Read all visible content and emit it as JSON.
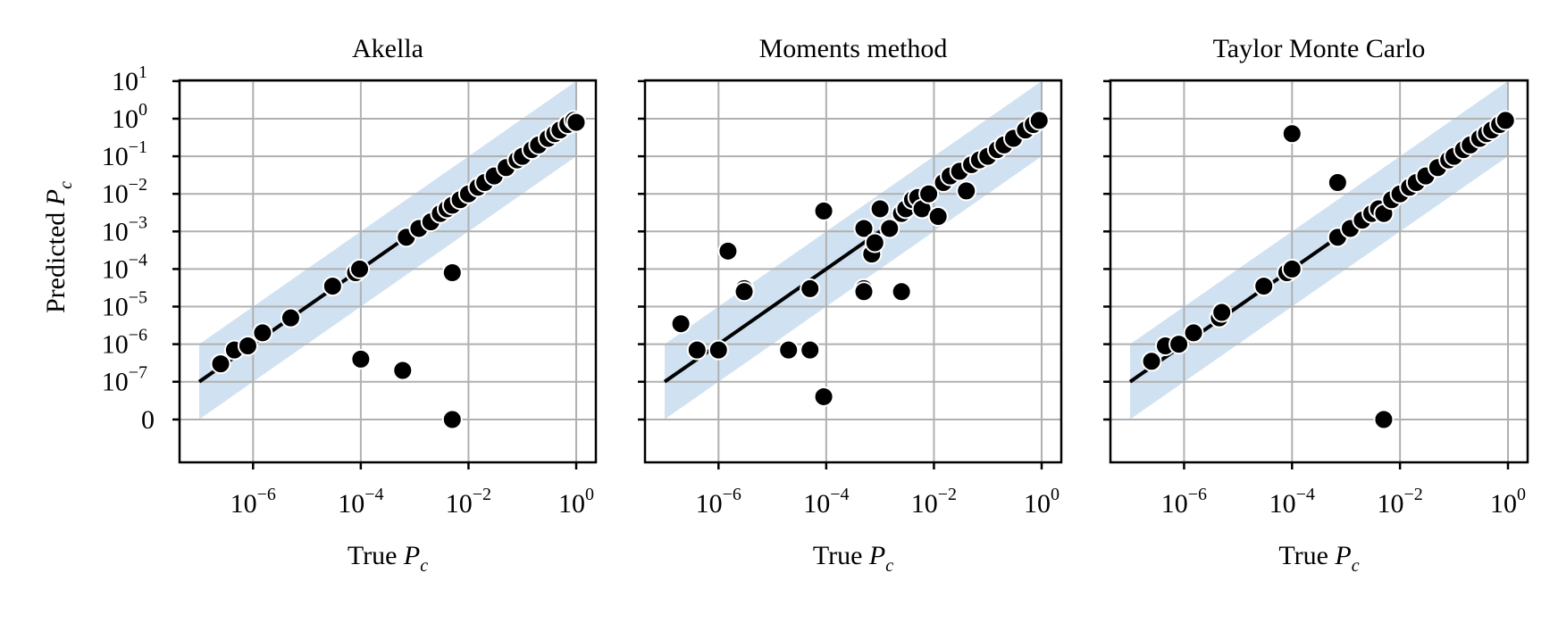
{
  "figure": {
    "ylabel_main": "Predicted ",
    "ylabel_var": "P",
    "ylabel_sub": "c",
    "xlabel_main": "True ",
    "xlabel_var": "P",
    "xlabel_sub": "c",
    "colors": {
      "band": "#a9cbe6",
      "points": "#000000",
      "line": "#000000",
      "grid": "#b0b0b0"
    }
  },
  "chart_data": [
    {
      "type": "scatter",
      "title": "Akella",
      "x_scale": "log",
      "y_scale": "symlog",
      "xlim": [
        1e-07,
        1
      ],
      "ylim": [
        1e-07,
        10
      ],
      "x_ticks": [
        {
          "base": "10",
          "exp": "−6",
          "value": 1e-06
        },
        {
          "base": "10",
          "exp": "−4",
          "value": 0.0001
        },
        {
          "base": "10",
          "exp": "−2",
          "value": 0.01
        },
        {
          "base": "10",
          "exp": "0",
          "value": 1
        }
      ],
      "y_ticks": [
        {
          "base": "10",
          "exp": "1",
          "value": 10
        },
        {
          "base": "10",
          "exp": "0",
          "value": 1
        },
        {
          "base": "10",
          "exp": "−1",
          "value": 0.1
        },
        {
          "base": "10",
          "exp": "−2",
          "value": 0.01
        },
        {
          "base": "10",
          "exp": "−3",
          "value": 0.001
        },
        {
          "base": "10",
          "exp": "−4",
          "value": 0.0001
        },
        {
          "base": "10",
          "exp": "−5",
          "value": 1e-05
        },
        {
          "base": "10",
          "exp": "−6",
          "value": 1e-06
        },
        {
          "base": "10",
          "exp": "−7",
          "value": 1e-07
        },
        {
          "base": "0",
          "exp": "",
          "value": 0
        }
      ],
      "reference_line": "y = x",
      "band": "factor of 10 above and below y = x",
      "grid": true,
      "points": [
        [
          2.5e-07,
          3e-07
        ],
        [
          4.5e-07,
          7e-07
        ],
        [
          8e-07,
          9e-07
        ],
        [
          1.5e-06,
          2e-06
        ],
        [
          5e-06,
          5e-06
        ],
        [
          3e-05,
          3.5e-05
        ],
        [
          8e-05,
          8e-05
        ],
        [
          9.5e-05,
          0.0001
        ],
        [
          0.0007,
          0.0007
        ],
        [
          0.0012,
          0.0012
        ],
        [
          0.002,
          0.0018
        ],
        [
          0.003,
          0.003
        ],
        [
          0.004,
          0.004
        ],
        [
          0.005,
          0.005
        ],
        [
          0.007,
          0.007
        ],
        [
          0.01,
          0.01
        ],
        [
          0.015,
          0.015
        ],
        [
          0.02,
          0.02
        ],
        [
          0.03,
          0.03
        ],
        [
          0.05,
          0.05
        ],
        [
          0.08,
          0.08
        ],
        [
          0.1,
          0.1
        ],
        [
          0.15,
          0.15
        ],
        [
          0.2,
          0.2
        ],
        [
          0.3,
          0.3
        ],
        [
          0.4,
          0.4
        ],
        [
          0.5,
          0.5
        ],
        [
          0.7,
          0.7
        ],
        [
          0.9,
          0.9
        ],
        [
          1.0,
          0.8
        ],
        [
          0.0001,
          4e-07
        ],
        [
          0.0006,
          2e-07
        ],
        [
          0.005,
          8e-05
        ],
        [
          0.005,
          0
        ]
      ]
    },
    {
      "type": "scatter",
      "title": "Moments method",
      "x_scale": "log",
      "y_scale": "symlog",
      "xlim": [
        1e-07,
        1
      ],
      "ylim": [
        1e-07,
        10
      ],
      "x_ticks": [
        {
          "base": "10",
          "exp": "−6",
          "value": 1e-06
        },
        {
          "base": "10",
          "exp": "−4",
          "value": 0.0001
        },
        {
          "base": "10",
          "exp": "−2",
          "value": 0.01
        },
        {
          "base": "10",
          "exp": "0",
          "value": 1
        }
      ],
      "y_ticks": [],
      "reference_line": "y = x",
      "band": "factor of 10 above and below y = x",
      "grid": true,
      "points": [
        [
          2e-07,
          3.5e-06
        ],
        [
          4e-07,
          7e-07
        ],
        [
          1e-06,
          7e-07
        ],
        [
          1.5e-06,
          0.0003
        ],
        [
          3e-06,
          3e-05
        ],
        [
          3e-06,
          2.5e-05
        ],
        [
          2e-05,
          7e-07
        ],
        [
          5e-05,
          7e-07
        ],
        [
          5e-05,
          3e-05
        ],
        [
          9e-05,
          0.0035
        ],
        [
          9e-05,
          4e-08
        ],
        [
          0.0005,
          0.0012
        ],
        [
          0.0005,
          3e-05
        ],
        [
          0.0005,
          2.5e-05
        ],
        [
          0.0007,
          0.00025
        ],
        [
          0.0008,
          0.0005
        ],
        [
          0.001,
          0.004
        ],
        [
          0.0015,
          0.0012
        ],
        [
          0.0025,
          2.5e-05
        ],
        [
          0.0025,
          0.003
        ],
        [
          0.003,
          0.004
        ],
        [
          0.004,
          0.007
        ],
        [
          0.005,
          0.008
        ],
        [
          0.006,
          0.004
        ],
        [
          0.008,
          0.01
        ],
        [
          0.012,
          0.0025
        ],
        [
          0.015,
          0.02
        ],
        [
          0.02,
          0.03
        ],
        [
          0.03,
          0.04
        ],
        [
          0.04,
          0.012
        ],
        [
          0.05,
          0.06
        ],
        [
          0.07,
          0.08
        ],
        [
          0.1,
          0.1
        ],
        [
          0.15,
          0.15
        ],
        [
          0.2,
          0.2
        ],
        [
          0.3,
          0.3
        ],
        [
          0.5,
          0.5
        ],
        [
          0.7,
          0.7
        ],
        [
          0.9,
          0.9
        ]
      ]
    },
    {
      "type": "scatter",
      "title": "Taylor Monte Carlo",
      "x_scale": "log",
      "y_scale": "symlog",
      "xlim": [
        1e-07,
        1
      ],
      "ylim": [
        1e-07,
        10
      ],
      "x_ticks": [
        {
          "base": "10",
          "exp": "−6",
          "value": 1e-06
        },
        {
          "base": "10",
          "exp": "−4",
          "value": 0.0001
        },
        {
          "base": "10",
          "exp": "−2",
          "value": 0.01
        },
        {
          "base": "10",
          "exp": "0",
          "value": 1
        }
      ],
      "y_ticks": [],
      "reference_line": "y = x",
      "band": "factor of 10 above and below y = x",
      "grid": true,
      "points": [
        [
          2.5e-07,
          3.5e-07
        ],
        [
          4.5e-07,
          9e-07
        ],
        [
          8e-07,
          1e-06
        ],
        [
          1.5e-06,
          2e-06
        ],
        [
          4.5e-06,
          5e-06
        ],
        [
          5e-06,
          7e-06
        ],
        [
          3e-05,
          3.5e-05
        ],
        [
          8e-05,
          8e-05
        ],
        [
          0.0001,
          0.0001
        ],
        [
          0.0007,
          0.0007
        ],
        [
          0.0012,
          0.0012
        ],
        [
          0.002,
          0.002
        ],
        [
          0.003,
          0.003
        ],
        [
          0.004,
          0.004
        ],
        [
          0.005,
          0.003
        ],
        [
          0.007,
          0.007
        ],
        [
          0.01,
          0.01
        ],
        [
          0.015,
          0.015
        ],
        [
          0.02,
          0.02
        ],
        [
          0.03,
          0.03
        ],
        [
          0.05,
          0.05
        ],
        [
          0.08,
          0.08
        ],
        [
          0.1,
          0.1
        ],
        [
          0.15,
          0.15
        ],
        [
          0.2,
          0.2
        ],
        [
          0.3,
          0.3
        ],
        [
          0.4,
          0.4
        ],
        [
          0.5,
          0.5
        ],
        [
          0.7,
          0.7
        ],
        [
          0.9,
          0.9
        ],
        [
          0.0001,
          0.4
        ],
        [
          0.0007,
          0.02
        ],
        [
          0.005,
          0
        ]
      ]
    }
  ]
}
